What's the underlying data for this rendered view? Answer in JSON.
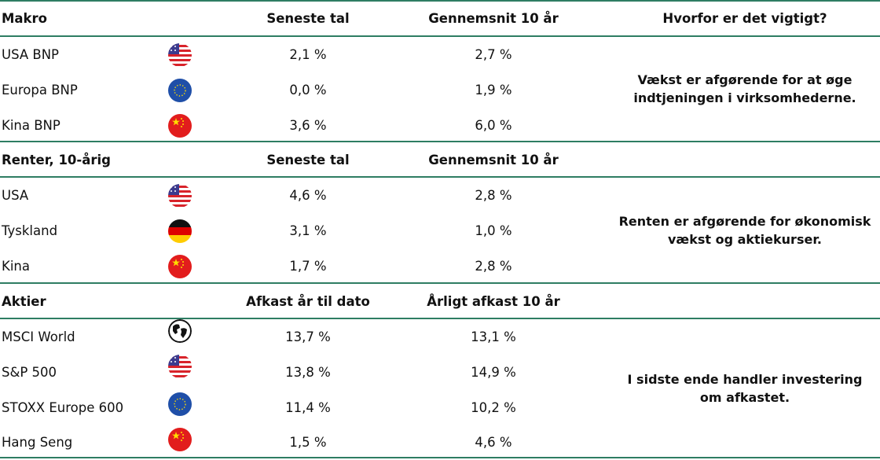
{
  "sections": [
    {
      "header": {
        "name": "Makro",
        "col1": "Seneste tal",
        "col2": "Gennemsnit 10 år",
        "col3": "Hvorfor er det vigtigt?"
      },
      "rows": [
        {
          "name": "USA BNP",
          "flag": "usa-flag-icon",
          "val1": "2,1 %",
          "val2": "2,7 %"
        },
        {
          "name": "Europa BNP",
          "flag": "eu-flag-icon",
          "val1": "0,0 %",
          "val2": "1,9 %"
        },
        {
          "name": "Kina BNP",
          "flag": "china-flag-icon",
          "val1": "3,6 %",
          "val2": "6,0 %"
        }
      ],
      "note": [
        "Vækst er afgørende for at øge",
        "indtjeningen i virksomhederne."
      ]
    },
    {
      "header": {
        "name": "Renter, 10-årig",
        "col1": "Seneste tal",
        "col2": "Gennemsnit 10 år",
        "col3": ""
      },
      "rows": [
        {
          "name": "USA",
          "flag": "usa-flag-icon",
          "val1": "4,6 %",
          "val2": "2,8 %"
        },
        {
          "name": "Tyskland",
          "flag": "germany-flag-icon",
          "val1": "3,1 %",
          "val2": "1,0 %"
        },
        {
          "name": "Kina",
          "flag": "china-flag-icon",
          "val1": "1,7 %",
          "val2": "2,8 %"
        }
      ],
      "note": [
        "Renten er afgørende for økonomisk",
        "vækst og aktiekurser."
      ]
    },
    {
      "header": {
        "name": "Aktier",
        "col1": "Afkast år til dato",
        "col2": "Årligt afkast 10 år",
        "col3": ""
      },
      "rows": [
        {
          "name": "MSCI World",
          "flag": "globe-icon",
          "val1": "13,7 %",
          "val2": "13,1 %"
        },
        {
          "name": "S&P 500",
          "flag": "usa-flag-icon",
          "val1": "13,8 %",
          "val2": "14,9 %"
        },
        {
          "name": "STOXX Europe 600",
          "flag": "eu-flag-icon",
          "val1": "11,4 %",
          "val2": "10,2 %"
        },
        {
          "name": "Hang Seng",
          "flag": "china-flag-icon",
          "val1": "1,5 %",
          "val2": "4,6 %"
        }
      ],
      "note": [
        "I sidste ende handler investering",
        "om afkastet."
      ]
    }
  ],
  "colors": {
    "rule": "#2e7d63",
    "us_red": "#d8232a",
    "us_blue": "#3c3b8e",
    "eu_blue": "#1f4fa8",
    "cn_red": "#e21d1d",
    "cn_star": "#ffde00"
  }
}
